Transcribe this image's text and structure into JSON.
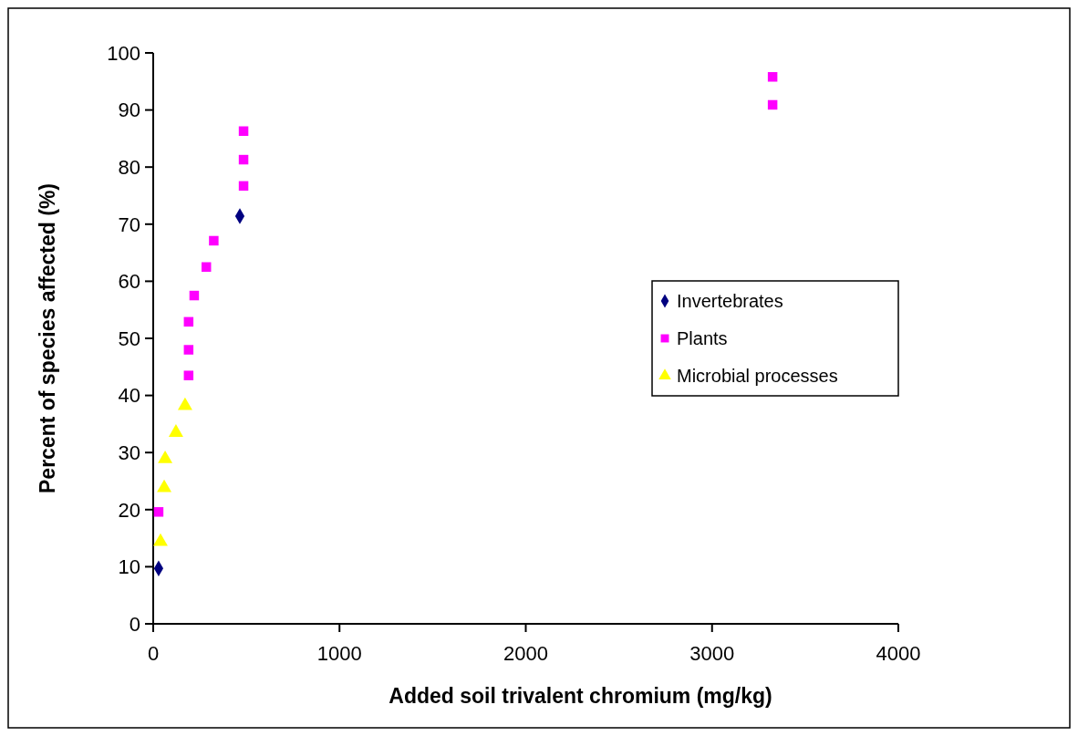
{
  "chart_data": {
    "type": "scatter",
    "xlabel": "Added soil trivalent chromium (mg/kg)",
    "ylabel": "Percent of species affected (%)",
    "xlim": [
      0,
      4000
    ],
    "xticks": [
      0,
      1000,
      2000,
      3000,
      4000
    ],
    "ylim": [
      0,
      100
    ],
    "yticks": [
      0,
      10,
      20,
      30,
      40,
      50,
      60,
      70,
      80,
      90,
      100
    ],
    "grid": false,
    "legend": "right",
    "series": [
      {
        "name": "Invertebrates",
        "color": "#000080",
        "marker": "diamond",
        "x": [
          29,
          465
        ],
        "values": [
          9.7,
          71.4
        ]
      },
      {
        "name": "Plants",
        "color": "#ff00ff",
        "marker": "square",
        "x": [
          29,
          190,
          190,
          190,
          220,
          285,
          325,
          485,
          485,
          485,
          3325,
          3325
        ],
        "values": [
          19.6,
          43.5,
          48.0,
          52.9,
          57.5,
          62.5,
          67.1,
          76.7,
          81.3,
          86.3,
          90.9,
          95.8
        ]
      },
      {
        "name": "Microbial processes",
        "color": "#ffff00",
        "marker": "triangle",
        "x": [
          39,
          59,
          64,
          122,
          171
        ],
        "values": [
          14.4,
          23.8,
          28.9,
          33.5,
          38.2
        ]
      }
    ]
  }
}
